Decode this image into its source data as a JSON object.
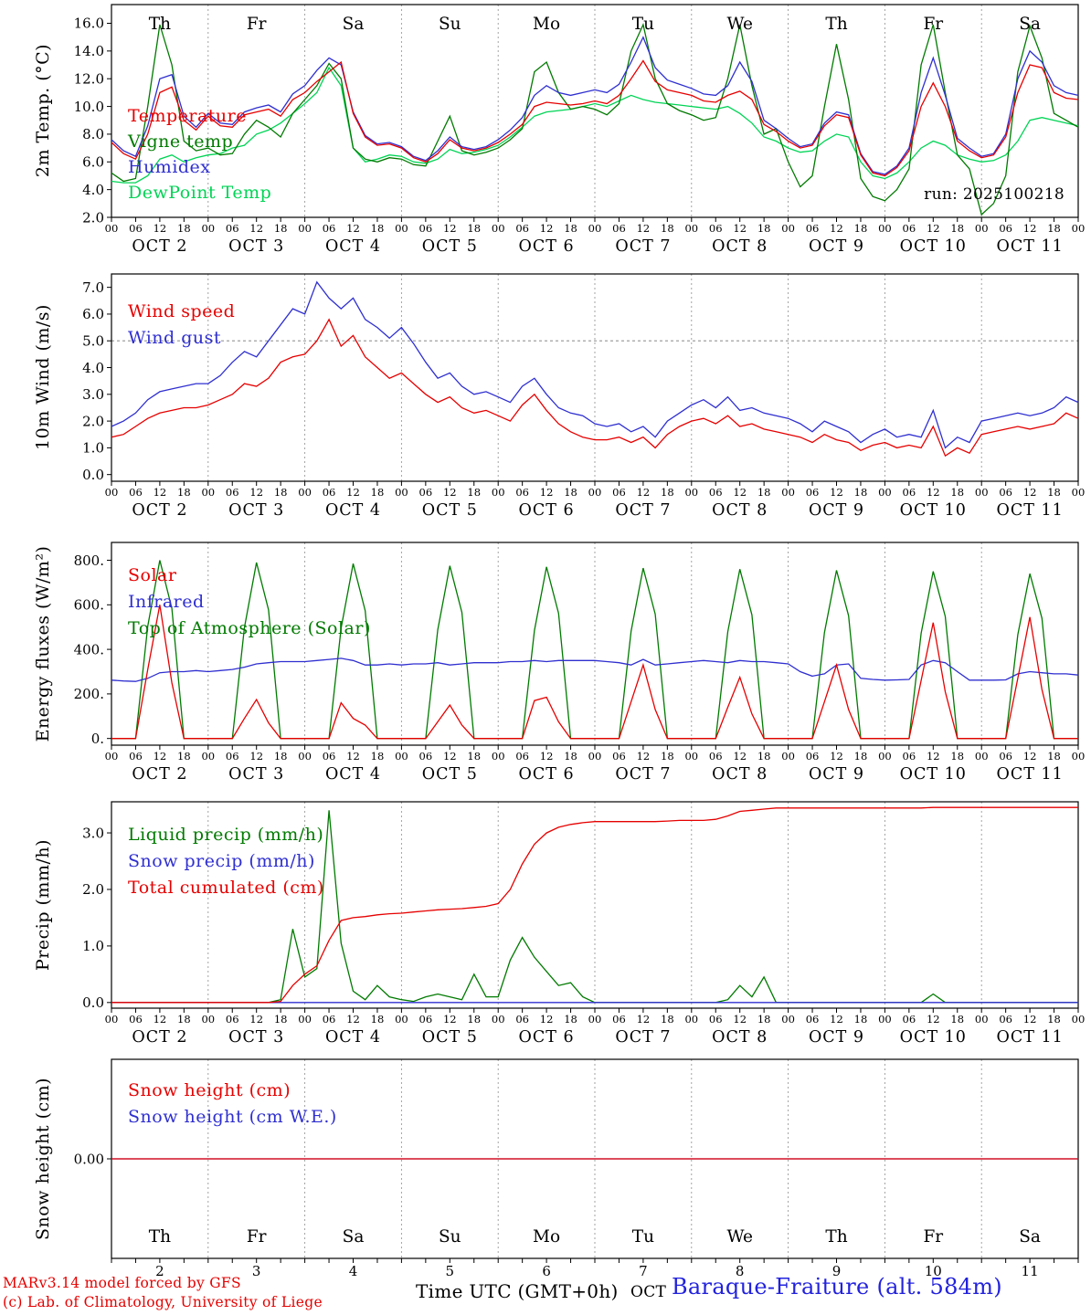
{
  "meta": {
    "run_label": "run: 2025100218"
  },
  "x_axis": {
    "total_hours": 240,
    "step_hours": 3,
    "hours": [
      "00",
      "06",
      "12",
      "18"
    ],
    "day_labels": [
      "OCT 2",
      "OCT 3",
      "OCT 4",
      "OCT 5",
      "OCT 6",
      "OCT 7",
      "OCT 8",
      "OCT 9",
      "OCT 10",
      "OCT 11"
    ],
    "weekdays": [
      {
        "label": "Th",
        "color": "#000000"
      },
      {
        "label": "Fr",
        "color": "#000000"
      },
      {
        "label": "Sa",
        "color": "#e60000"
      },
      {
        "label": "Su",
        "color": "#e60000"
      },
      {
        "label": "Mo",
        "color": "#000000"
      },
      {
        "label": "Tu",
        "color": "#000000"
      },
      {
        "label": "We",
        "color": "#000000"
      },
      {
        "label": "Th",
        "color": "#000000"
      },
      {
        "label": "Fr",
        "color": "#000000"
      },
      {
        "label": "Sa",
        "color": "#e60000"
      }
    ],
    "day_numbers": [
      "2",
      "3",
      "4",
      "5",
      "6",
      "7",
      "8",
      "9",
      "10",
      "11"
    ]
  },
  "footer": {
    "time_label": "Time UTC (GMT+0h)",
    "month_label": "OCT",
    "station_label": "Baraque-Fraiture (alt. 584m)",
    "station_color": "#2222dd",
    "credit_line1": "MARv3.14 model forced by GFS",
    "credit_line2": "(c) Lab. of Climatology, University of Liege",
    "credit_color": "#e60000"
  },
  "chart_data": [
    {
      "type": "line",
      "ylabel": "2m Temp. (°C)",
      "ylim": [
        2,
        17.35
      ],
      "ytick_values": [
        2,
        4,
        6,
        8,
        10,
        12,
        14,
        16
      ],
      "ytick_labels": [
        "2.0",
        "4.0",
        "6.0",
        "8.0",
        "10.0",
        "12.0",
        "14.0",
        "16.0"
      ],
      "series": [
        {
          "name": "DewPoint Temp",
          "color": "#00d455",
          "values": [
            4.6,
            4.5,
            4.5,
            5.0,
            6.2,
            6.5,
            6.0,
            6.3,
            6.5,
            6.6,
            7.0,
            7.2,
            8.0,
            8.3,
            8.8,
            9.5,
            10.2,
            11.0,
            12.8,
            11.5,
            7.0,
            6.0,
            6.2,
            6.5,
            6.4,
            6.0,
            5.9,
            6.2,
            6.9,
            6.6,
            6.7,
            6.9,
            7.2,
            7.8,
            8.5,
            9.3,
            9.6,
            9.7,
            9.8,
            10.0,
            10.2,
            10.0,
            10.4,
            10.8,
            10.5,
            10.3,
            10.2,
            10.1,
            10.0,
            9.9,
            9.8,
            10.0,
            9.5,
            8.8,
            7.8,
            7.5,
            7.0,
            6.7,
            6.8,
            7.5,
            8.0,
            7.8,
            6.0,
            5.0,
            4.8,
            5.2,
            6.0,
            7.0,
            7.5,
            7.2,
            6.5,
            6.2,
            6.0,
            6.1,
            6.5,
            7.5,
            9.0,
            9.2,
            9.0,
            8.8,
            8.6
          ]
        },
        {
          "name": "Vigne temp",
          "color": "#007a00",
          "values": [
            5.2,
            4.6,
            4.8,
            10.0,
            15.9,
            13.0,
            7.5,
            6.8,
            7.0,
            6.5,
            6.6,
            8.0,
            9.0,
            8.5,
            7.8,
            9.5,
            10.5,
            11.5,
            13.1,
            12.0,
            7.0,
            6.2,
            6.0,
            6.3,
            6.2,
            5.8,
            5.7,
            7.5,
            9.3,
            6.8,
            6.5,
            6.7,
            7.0,
            7.6,
            8.4,
            12.5,
            13.2,
            11.0,
            9.8,
            10.0,
            9.8,
            9.4,
            10.2,
            14.0,
            15.9,
            12.0,
            10.2,
            9.7,
            9.4,
            9.0,
            9.2,
            12.0,
            15.9,
            11.5,
            8.0,
            8.4,
            6.0,
            4.2,
            5.0,
            10.0,
            14.5,
            10.5,
            4.8,
            3.5,
            3.2,
            4.0,
            5.5,
            13.0,
            15.9,
            11.0,
            6.5,
            5.5,
            2.2,
            3.0,
            5.0,
            12.5,
            15.8,
            13.5,
            9.5,
            9.0,
            8.5
          ]
        },
        {
          "name": "Humidex",
          "color": "#2f2fd0",
          "values": [
            7.6,
            6.8,
            6.4,
            8.6,
            12.0,
            12.3,
            9.3,
            8.5,
            9.5,
            8.8,
            8.7,
            9.6,
            9.9,
            10.1,
            9.6,
            10.9,
            11.5,
            12.6,
            13.5,
            13.0,
            9.6,
            7.9,
            7.3,
            7.4,
            7.1,
            6.4,
            6.1,
            6.8,
            7.8,
            7.1,
            6.9,
            7.1,
            7.6,
            8.3,
            9.2,
            10.8,
            11.5,
            11.0,
            10.8,
            11.0,
            11.2,
            11.0,
            11.6,
            13.2,
            15.0,
            12.8,
            11.9,
            11.6,
            11.3,
            10.9,
            10.8,
            11.5,
            13.2,
            11.8,
            9.0,
            8.4,
            7.7,
            7.1,
            7.3,
            8.8,
            9.6,
            9.4,
            6.6,
            5.3,
            5.1,
            5.7,
            7.0,
            11.0,
            13.5,
            10.8,
            7.7,
            7.0,
            6.4,
            6.6,
            8.0,
            12.0,
            14.0,
            13.2,
            11.5,
            11.0,
            10.8
          ]
        },
        {
          "name": "Temperature",
          "color": "#e60000",
          "values": [
            7.4,
            6.6,
            6.2,
            8.0,
            11.0,
            11.4,
            9.0,
            8.3,
            9.3,
            8.6,
            8.5,
            9.4,
            9.6,
            9.8,
            9.3,
            10.5,
            11.0,
            11.8,
            12.5,
            13.2,
            9.5,
            7.8,
            7.2,
            7.3,
            7.0,
            6.3,
            6.0,
            6.6,
            7.6,
            7.0,
            6.8,
            7.0,
            7.4,
            8.0,
            8.7,
            10.0,
            10.3,
            10.2,
            10.1,
            10.2,
            10.4,
            10.2,
            10.8,
            12.0,
            13.3,
            11.8,
            11.2,
            11.0,
            10.8,
            10.4,
            10.3,
            10.8,
            11.1,
            10.5,
            8.7,
            8.2,
            7.5,
            7.0,
            7.2,
            8.6,
            9.4,
            9.2,
            6.5,
            5.2,
            5.0,
            5.6,
            6.8,
            10.0,
            11.7,
            10.0,
            7.5,
            6.8,
            6.3,
            6.5,
            7.8,
            11.0,
            13.0,
            12.8,
            11.0,
            10.6,
            10.5
          ]
        }
      ]
    },
    {
      "type": "line",
      "ylabel": "10m Wind (m/s)",
      "ylim": [
        -0.25,
        7.5
      ],
      "ytick_values": [
        0,
        1,
        2,
        3,
        4,
        5,
        6,
        7
      ],
      "ytick_labels": [
        "0.0",
        "1.0",
        "2.0",
        "3.0",
        "4.0",
        "5.0",
        "6.0",
        "7.0"
      ],
      "hlines": [
        5.0
      ],
      "series": [
        {
          "name": "Wind gust",
          "color": "#2f2fd0",
          "values": [
            1.8,
            2.0,
            2.3,
            2.8,
            3.1,
            3.2,
            3.3,
            3.4,
            3.4,
            3.7,
            4.2,
            4.6,
            4.4,
            5.0,
            5.6,
            6.2,
            6.0,
            7.2,
            6.6,
            6.2,
            6.6,
            5.8,
            5.5,
            5.1,
            5.5,
            4.9,
            4.2,
            3.6,
            3.8,
            3.3,
            3.0,
            3.1,
            2.9,
            2.7,
            3.3,
            3.6,
            3.0,
            2.5,
            2.3,
            2.2,
            1.9,
            1.8,
            1.9,
            1.6,
            1.8,
            1.4,
            2.0,
            2.3,
            2.6,
            2.8,
            2.5,
            2.9,
            2.4,
            2.5,
            2.3,
            2.2,
            2.1,
            1.9,
            1.6,
            2.0,
            1.8,
            1.6,
            1.2,
            1.5,
            1.7,
            1.4,
            1.5,
            1.4,
            2.4,
            1.0,
            1.4,
            1.2,
            2.0,
            2.1,
            2.2,
            2.3,
            2.2,
            2.3,
            2.5,
            2.9,
            2.7
          ]
        },
        {
          "name": "Wind speed",
          "color": "#e60000",
          "values": [
            1.4,
            1.5,
            1.8,
            2.1,
            2.3,
            2.4,
            2.5,
            2.5,
            2.6,
            2.8,
            3.0,
            3.4,
            3.3,
            3.6,
            4.2,
            4.4,
            4.5,
            5.0,
            5.8,
            4.8,
            5.2,
            4.4,
            4.0,
            3.6,
            3.8,
            3.4,
            3.0,
            2.7,
            2.9,
            2.5,
            2.3,
            2.4,
            2.2,
            2.0,
            2.6,
            3.0,
            2.4,
            1.9,
            1.6,
            1.4,
            1.3,
            1.3,
            1.4,
            1.2,
            1.4,
            1.0,
            1.5,
            1.8,
            2.0,
            2.1,
            1.9,
            2.2,
            1.8,
            1.9,
            1.7,
            1.6,
            1.5,
            1.4,
            1.2,
            1.5,
            1.3,
            1.2,
            0.9,
            1.1,
            1.2,
            1.0,
            1.1,
            1.0,
            1.8,
            0.7,
            1.0,
            0.8,
            1.5,
            1.6,
            1.7,
            1.8,
            1.7,
            1.8,
            1.9,
            2.3,
            2.1
          ]
        }
      ]
    },
    {
      "type": "line",
      "ylabel": "Energy fluxes (W/m²)",
      "ylim": [
        -30,
        880
      ],
      "ytick_values": [
        0,
        200,
        400,
        600,
        800
      ],
      "ytick_labels": [
        "0.",
        "200.",
        "400.",
        "600.",
        "800."
      ],
      "series": [
        {
          "name": "Top of Atmosphere (Solar)",
          "color": "#007a00",
          "values": [
            0,
            0,
            0,
            504,
            800,
            584,
            0,
            0,
            0,
            0,
            0,
            498,
            790,
            577,
            0,
            0,
            0,
            0,
            0,
            495,
            785,
            573,
            0,
            0,
            0,
            0,
            0,
            488,
            775,
            566,
            0,
            0,
            0,
            0,
            0,
            485,
            770,
            562,
            0,
            0,
            0,
            0,
            0,
            482,
            765,
            558,
            0,
            0,
            0,
            0,
            0,
            479,
            760,
            555,
            0,
            0,
            0,
            0,
            0,
            476,
            755,
            551,
            0,
            0,
            0,
            0,
            0,
            472,
            750,
            548,
            0,
            0,
            0,
            0,
            0,
            466,
            740,
            540,
            0,
            0,
            0
          ]
        },
        {
          "name": "Infrared",
          "color": "#2f2fd0",
          "values": [
            262,
            258,
            256,
            270,
            295,
            300,
            300,
            305,
            300,
            305,
            310,
            320,
            335,
            340,
            345,
            345,
            345,
            350,
            355,
            360,
            350,
            330,
            330,
            335,
            330,
            335,
            335,
            340,
            330,
            335,
            340,
            340,
            340,
            345,
            345,
            350,
            345,
            350,
            350,
            350,
            350,
            345,
            340,
            330,
            355,
            330,
            335,
            340,
            345,
            350,
            345,
            340,
            350,
            345,
            345,
            340,
            335,
            300,
            280,
            290,
            330,
            335,
            270,
            265,
            262,
            263,
            265,
            330,
            350,
            340,
            300,
            262,
            262,
            262,
            263,
            290,
            300,
            295,
            290,
            290,
            285
          ]
        },
        {
          "name": "Solar",
          "color": "#e60000",
          "values": [
            0,
            0,
            0,
            310,
            600,
            250,
            0,
            0,
            0,
            0,
            0,
            90,
            175,
            70,
            0,
            0,
            0,
            0,
            0,
            160,
            90,
            60,
            0,
            0,
            0,
            0,
            0,
            75,
            150,
            60,
            0,
            0,
            0,
            0,
            0,
            170,
            185,
            75,
            0,
            0,
            0,
            0,
            0,
            165,
            330,
            130,
            0,
            0,
            0,
            0,
            0,
            140,
            275,
            110,
            0,
            0,
            0,
            0,
            0,
            165,
            330,
            130,
            0,
            0,
            0,
            0,
            0,
            260,
            520,
            210,
            0,
            0,
            0,
            0,
            0,
            270,
            545,
            220,
            0,
            0,
            0
          ]
        }
      ]
    },
    {
      "type": "line",
      "ylabel": "Precip (mm/h)",
      "ylim": [
        -0.1,
        3.55
      ],
      "ytick_values": [
        0,
        1,
        2,
        3
      ],
      "ytick_labels": [
        "0.0",
        "1.0",
        "2.0",
        "3.0"
      ],
      "series": [
        {
          "name": "Liquid precip (mm/h)",
          "color": "#007a00",
          "values": [
            0,
            0,
            0,
            0,
            0,
            0,
            0,
            0,
            0,
            0,
            0,
            0,
            0,
            0,
            0.05,
            1.3,
            0.45,
            0.6,
            3.4,
            1.05,
            0.2,
            0.05,
            0.3,
            0.1,
            0.05,
            0.02,
            0.1,
            0.15,
            0.1,
            0.05,
            0.5,
            0.1,
            0.1,
            0.75,
            1.15,
            0.8,
            0.55,
            0.3,
            0.35,
            0.1,
            0,
            0,
            0,
            0,
            0,
            0,
            0,
            0,
            0,
            0,
            0,
            0.05,
            0.3,
            0.1,
            0.45,
            0,
            0,
            0,
            0,
            0,
            0,
            0,
            0,
            0,
            0,
            0,
            0,
            0,
            0.15,
            0,
            0,
            0,
            0,
            0,
            0,
            0,
            0,
            0,
            0,
            0,
            0
          ]
        },
        {
          "name": "Snow precip (mm/h)",
          "color": "#2f2fd0",
          "constant": 0
        },
        {
          "name": "Total cumulated (cm)",
          "color": "#e60000",
          "values": [
            0,
            0,
            0,
            0,
            0,
            0,
            0,
            0,
            0,
            0,
            0,
            0,
            0,
            0,
            0.02,
            0.3,
            0.5,
            0.65,
            1.1,
            1.45,
            1.5,
            1.52,
            1.55,
            1.57,
            1.58,
            1.6,
            1.62,
            1.64,
            1.65,
            1.66,
            1.68,
            1.7,
            1.75,
            2.0,
            2.45,
            2.8,
            3.0,
            3.1,
            3.15,
            3.18,
            3.2,
            3.2,
            3.2,
            3.2,
            3.2,
            3.2,
            3.21,
            3.22,
            3.22,
            3.22,
            3.24,
            3.3,
            3.38,
            3.4,
            3.42,
            3.44,
            3.44,
            3.44,
            3.44,
            3.44,
            3.44,
            3.44,
            3.44,
            3.44,
            3.44,
            3.44,
            3.44,
            3.44,
            3.45,
            3.45,
            3.45,
            3.45,
            3.45,
            3.45,
            3.45,
            3.45,
            3.45,
            3.45,
            3.45,
            3.45,
            3.45
          ]
        }
      ]
    },
    {
      "type": "line",
      "ylabel": "Snow height (cm)",
      "ylim": [
        -1,
        1
      ],
      "ytick_values": [
        0
      ],
      "ytick_labels": [
        "0.00"
      ],
      "series": [
        {
          "name": "Snow height (cm W.E.)",
          "color": "#2f2fd0",
          "constant": 0
        },
        {
          "name": "Snow height (cm)",
          "color": "#e60000",
          "constant": 0
        }
      ]
    }
  ]
}
